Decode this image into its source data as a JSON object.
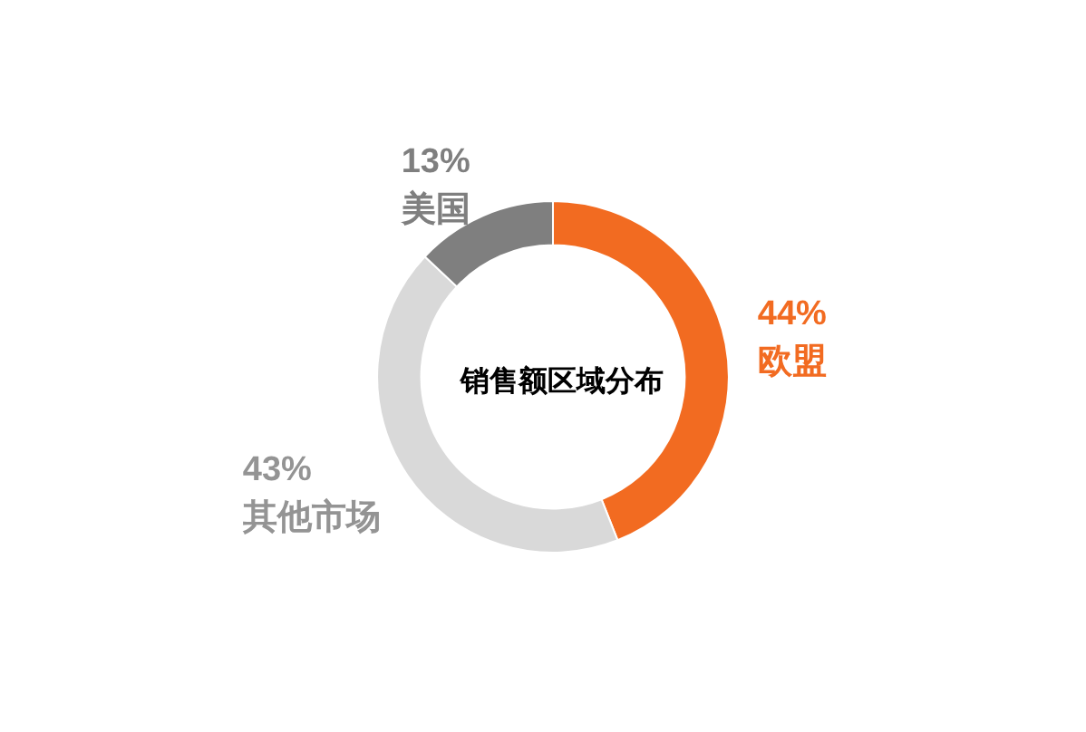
{
  "chart_data": {
    "type": "donut",
    "title": "销售额区域分布",
    "categories": [
      "欧盟",
      "其他市场",
      "美国"
    ],
    "values": [
      44,
      43,
      13
    ],
    "value_labels": [
      "44%",
      "43%",
      "13%"
    ],
    "colors": [
      "#f26b21",
      "#d9d9d9",
      "#7f7f7f"
    ]
  }
}
